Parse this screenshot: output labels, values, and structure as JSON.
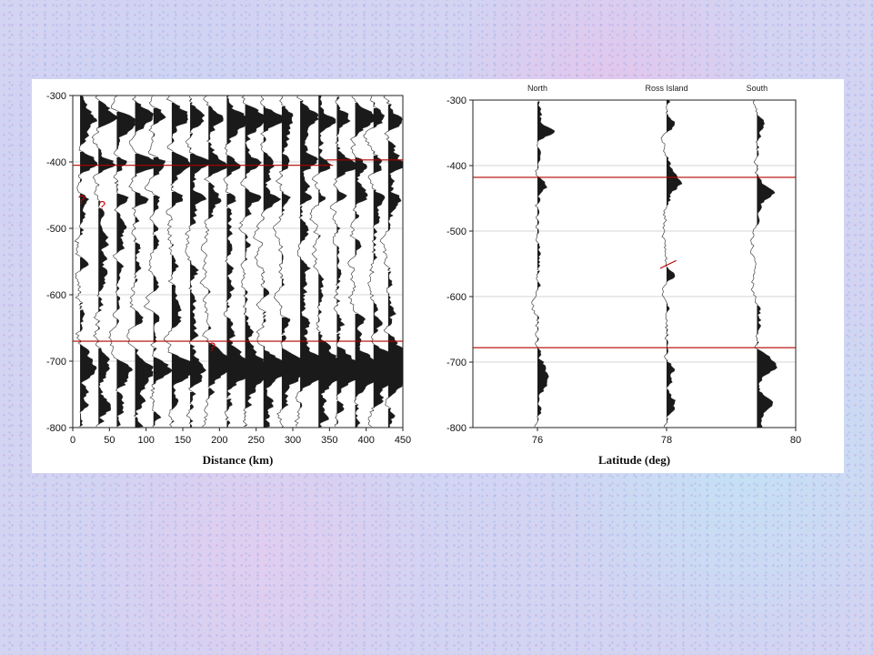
{
  "chart_data": [
    {
      "type": "seismic-wiggle",
      "xlabel": "Distance (km)",
      "ylabel": "",
      "xlim": [
        0,
        450
      ],
      "ylim": [
        -800,
        -300
      ],
      "x_ticks": [
        "0",
        "50",
        "100",
        "150",
        "200",
        "250",
        "300",
        "350",
        "400",
        "450"
      ],
      "y_ticks": [
        "-300",
        "-400",
        "-500",
        "-600",
        "-700",
        "-800"
      ],
      "grid": true,
      "trace_offsets_km": [
        10,
        35,
        60,
        85,
        110,
        135,
        160,
        185,
        210,
        235,
        260,
        285,
        310,
        335,
        360,
        385,
        410,
        430
      ],
      "red_lines": [
        {
          "depth": -405,
          "from_km": 0,
          "to_km": 355
        },
        {
          "depth": -397,
          "from_km": 345,
          "to_km": 450
        },
        {
          "depth": -670,
          "from_km": 0,
          "to_km": 450
        }
      ],
      "annotations": [
        {
          "text": "?",
          "distance": 12,
          "depth": -463
        },
        {
          "text": "?",
          "distance": 40,
          "depth": -472
        },
        {
          "text": "?",
          "distance": 190,
          "depth": -685
        }
      ]
    },
    {
      "type": "seismic-wiggle",
      "xlabel": "Latitude (deg)",
      "ylabel": "",
      "xlim": [
        75,
        80
      ],
      "ylim": [
        -800,
        -300
      ],
      "x_ticks": [
        "76",
        "78",
        "80"
      ],
      "y_ticks": [
        "-300",
        "-400",
        "-500",
        "-600",
        "-700",
        "-800"
      ],
      "grid": true,
      "traces": [
        {
          "label": "North",
          "latitude": 76.0
        },
        {
          "label": "Ross Island",
          "latitude": 78.0
        },
        {
          "label": "South",
          "latitude": 79.4
        }
      ],
      "red_lines": [
        {
          "depth": -418
        },
        {
          "depth": -678
        }
      ],
      "red_segment": {
        "from": [
          77.9,
          -557
        ],
        "to": [
          78.15,
          -545
        ]
      }
    }
  ]
}
